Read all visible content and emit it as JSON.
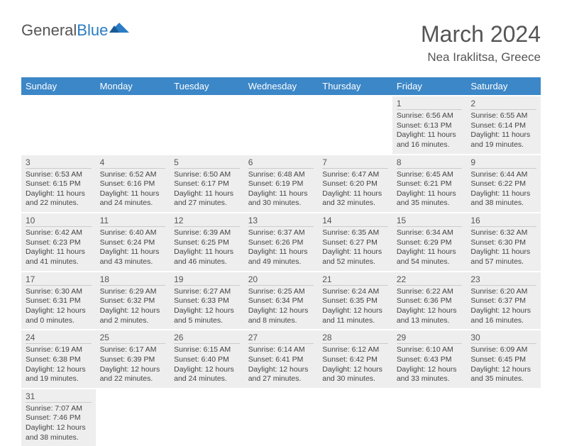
{
  "brand": {
    "word1": "General",
    "word2": "Blue"
  },
  "title": "March 2024",
  "location": "Nea Iraklitsa, Greece",
  "colors": {
    "header_bg": "#3c87c7",
    "header_text": "#ffffff",
    "cell_bg": "#eeeeee",
    "day_border": "#cccccc",
    "text": "#444444",
    "title_text": "#555555",
    "brand_blue": "#2b7cc4"
  },
  "weekdays": [
    "Sunday",
    "Monday",
    "Tuesday",
    "Wednesday",
    "Thursday",
    "Friday",
    "Saturday"
  ],
  "weeks": [
    [
      null,
      null,
      null,
      null,
      null,
      {
        "d": "1",
        "sr": "6:56 AM",
        "ss": "6:13 PM",
        "dl": "11 hours and 16 minutes."
      },
      {
        "d": "2",
        "sr": "6:55 AM",
        "ss": "6:14 PM",
        "dl": "11 hours and 19 minutes."
      }
    ],
    [
      {
        "d": "3",
        "sr": "6:53 AM",
        "ss": "6:15 PM",
        "dl": "11 hours and 22 minutes."
      },
      {
        "d": "4",
        "sr": "6:52 AM",
        "ss": "6:16 PM",
        "dl": "11 hours and 24 minutes."
      },
      {
        "d": "5",
        "sr": "6:50 AM",
        "ss": "6:17 PM",
        "dl": "11 hours and 27 minutes."
      },
      {
        "d": "6",
        "sr": "6:48 AM",
        "ss": "6:19 PM",
        "dl": "11 hours and 30 minutes."
      },
      {
        "d": "7",
        "sr": "6:47 AM",
        "ss": "6:20 PM",
        "dl": "11 hours and 32 minutes."
      },
      {
        "d": "8",
        "sr": "6:45 AM",
        "ss": "6:21 PM",
        "dl": "11 hours and 35 minutes."
      },
      {
        "d": "9",
        "sr": "6:44 AM",
        "ss": "6:22 PM",
        "dl": "11 hours and 38 minutes."
      }
    ],
    [
      {
        "d": "10",
        "sr": "6:42 AM",
        "ss": "6:23 PM",
        "dl": "11 hours and 41 minutes."
      },
      {
        "d": "11",
        "sr": "6:40 AM",
        "ss": "6:24 PM",
        "dl": "11 hours and 43 minutes."
      },
      {
        "d": "12",
        "sr": "6:39 AM",
        "ss": "6:25 PM",
        "dl": "11 hours and 46 minutes."
      },
      {
        "d": "13",
        "sr": "6:37 AM",
        "ss": "6:26 PM",
        "dl": "11 hours and 49 minutes."
      },
      {
        "d": "14",
        "sr": "6:35 AM",
        "ss": "6:27 PM",
        "dl": "11 hours and 52 minutes."
      },
      {
        "d": "15",
        "sr": "6:34 AM",
        "ss": "6:29 PM",
        "dl": "11 hours and 54 minutes."
      },
      {
        "d": "16",
        "sr": "6:32 AM",
        "ss": "6:30 PM",
        "dl": "11 hours and 57 minutes."
      }
    ],
    [
      {
        "d": "17",
        "sr": "6:30 AM",
        "ss": "6:31 PM",
        "dl": "12 hours and 0 minutes."
      },
      {
        "d": "18",
        "sr": "6:29 AM",
        "ss": "6:32 PM",
        "dl": "12 hours and 2 minutes."
      },
      {
        "d": "19",
        "sr": "6:27 AM",
        "ss": "6:33 PM",
        "dl": "12 hours and 5 minutes."
      },
      {
        "d": "20",
        "sr": "6:25 AM",
        "ss": "6:34 PM",
        "dl": "12 hours and 8 minutes."
      },
      {
        "d": "21",
        "sr": "6:24 AM",
        "ss": "6:35 PM",
        "dl": "12 hours and 11 minutes."
      },
      {
        "d": "22",
        "sr": "6:22 AM",
        "ss": "6:36 PM",
        "dl": "12 hours and 13 minutes."
      },
      {
        "d": "23",
        "sr": "6:20 AM",
        "ss": "6:37 PM",
        "dl": "12 hours and 16 minutes."
      }
    ],
    [
      {
        "d": "24",
        "sr": "6:19 AM",
        "ss": "6:38 PM",
        "dl": "12 hours and 19 minutes."
      },
      {
        "d": "25",
        "sr": "6:17 AM",
        "ss": "6:39 PM",
        "dl": "12 hours and 22 minutes."
      },
      {
        "d": "26",
        "sr": "6:15 AM",
        "ss": "6:40 PM",
        "dl": "12 hours and 24 minutes."
      },
      {
        "d": "27",
        "sr": "6:14 AM",
        "ss": "6:41 PM",
        "dl": "12 hours and 27 minutes."
      },
      {
        "d": "28",
        "sr": "6:12 AM",
        "ss": "6:42 PM",
        "dl": "12 hours and 30 minutes."
      },
      {
        "d": "29",
        "sr": "6:10 AM",
        "ss": "6:43 PM",
        "dl": "12 hours and 33 minutes."
      },
      {
        "d": "30",
        "sr": "6:09 AM",
        "ss": "6:45 PM",
        "dl": "12 hours and 35 minutes."
      }
    ],
    [
      {
        "d": "31",
        "sr": "7:07 AM",
        "ss": "7:46 PM",
        "dl": "12 hours and 38 minutes."
      },
      null,
      null,
      null,
      null,
      null,
      null
    ]
  ],
  "labels": {
    "sunrise": "Sunrise:",
    "sunset": "Sunset:",
    "daylight": "Daylight:"
  }
}
